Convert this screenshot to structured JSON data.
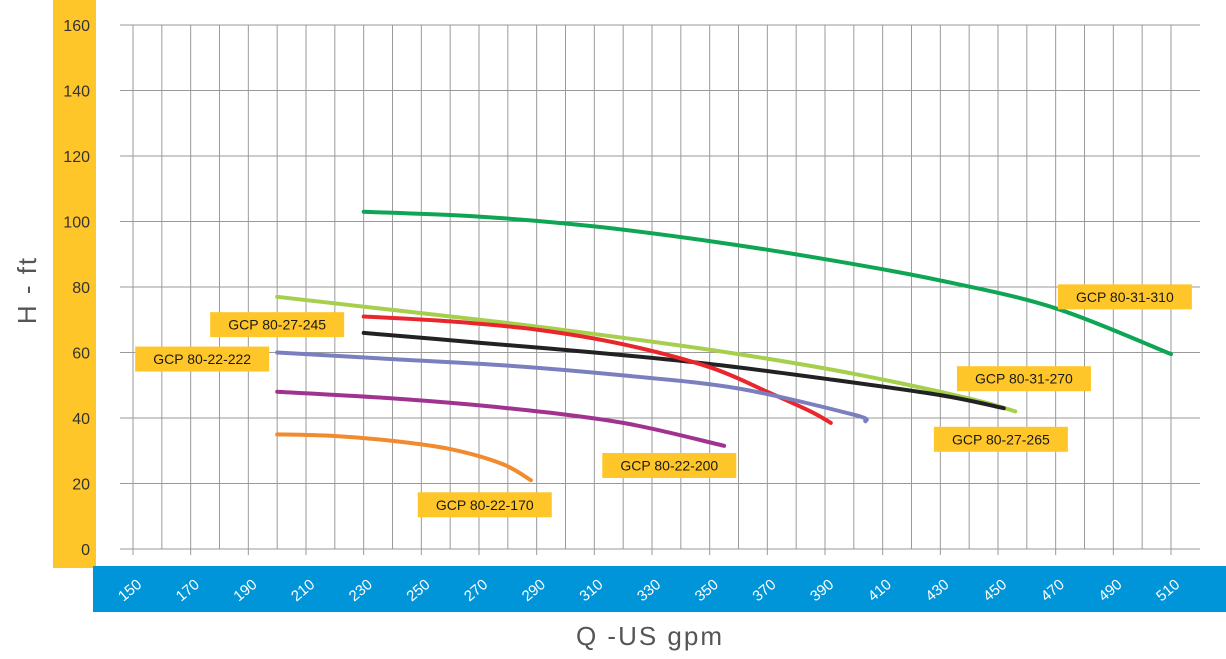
{
  "chart_data": {
    "type": "line",
    "xlabel": "Q -US gpm",
    "ylabel": "H - ft",
    "xlim": [
      150,
      510
    ],
    "ylim": [
      0,
      160
    ],
    "x_ticks": [
      150,
      170,
      190,
      210,
      230,
      250,
      270,
      290,
      310,
      330,
      350,
      370,
      390,
      410,
      430,
      450,
      470,
      490,
      510
    ],
    "y_ticks": [
      0,
      20,
      40,
      60,
      80,
      100,
      120,
      140,
      160
    ],
    "grid": true,
    "colors": {
      "y_axis_band": "#FFC629",
      "x_axis_band": "#0095D9",
      "grid": "#9a9a9a",
      "label_bg": "#FFC629"
    },
    "series": [
      {
        "name": "GCP 80-31-310",
        "color": "#0EA655",
        "x": [
          230,
          270,
          310,
          350,
          390,
          430,
          470,
          510
        ],
        "y": [
          103,
          101.5,
          98.5,
          94,
          88.5,
          82,
          73.5,
          59.5
        ]
      },
      {
        "name": "GCP 80-31-270",
        "color": "#A5CF4C",
        "x": [
          200,
          240,
          280,
          320,
          360,
          400,
          440,
          456
        ],
        "y": [
          77,
          73,
          69,
          64.5,
          59.5,
          53.5,
          46,
          42
        ]
      },
      {
        "name": "GCP 80-27-265",
        "color": "#222222",
        "x": [
          230,
          270,
          310,
          350,
          390,
          430,
          452
        ],
        "y": [
          66,
          63,
          60,
          56.5,
          52,
          47,
          43
        ]
      },
      {
        "name": "GCP 80-27-245",
        "color": "#E8262B",
        "x": [
          230,
          260,
          290,
          320,
          350,
          370,
          385,
          392
        ],
        "y": [
          71,
          69.5,
          67,
          62.5,
          55.5,
          48,
          42,
          38.5
        ]
      },
      {
        "name": "GCP 80-22-222",
        "color": "#7B7FC0",
        "x": [
          200,
          240,
          280,
          320,
          360,
          400,
          404
        ],
        "y": [
          60,
          58,
          56,
          53,
          49,
          41,
          39
        ]
      },
      {
        "name": "GCP 80-22-200",
        "color": "#A0338F",
        "x": [
          200,
          240,
          280,
          320,
          355
        ],
        "y": [
          48,
          46,
          43,
          38.5,
          31.5
        ]
      },
      {
        "name": "GCP 80-22-170",
        "color": "#F28A2E",
        "x": [
          200,
          220,
          240,
          260,
          278,
          288
        ],
        "y": [
          35,
          34.5,
          33,
          30.5,
          26,
          21
        ]
      }
    ],
    "labels": [
      {
        "text": "GCP 80-31-310",
        "x": 494,
        "y": 77
      },
      {
        "text": "GCP 80-31-270",
        "x": 459,
        "y": 52
      },
      {
        "text": "GCP 80-27-265",
        "x": 451,
        "y": 33.5
      },
      {
        "text": "GCP 80-27-245",
        "x": 200,
        "y": 68.5
      },
      {
        "text": "GCP 80-22-222",
        "x": 174,
        "y": 58
      },
      {
        "text": "GCP 80-22-200",
        "x": 336,
        "y": 25.5
      },
      {
        "text": "GCP 80-22-170",
        "x": 272,
        "y": 13.5
      }
    ]
  }
}
